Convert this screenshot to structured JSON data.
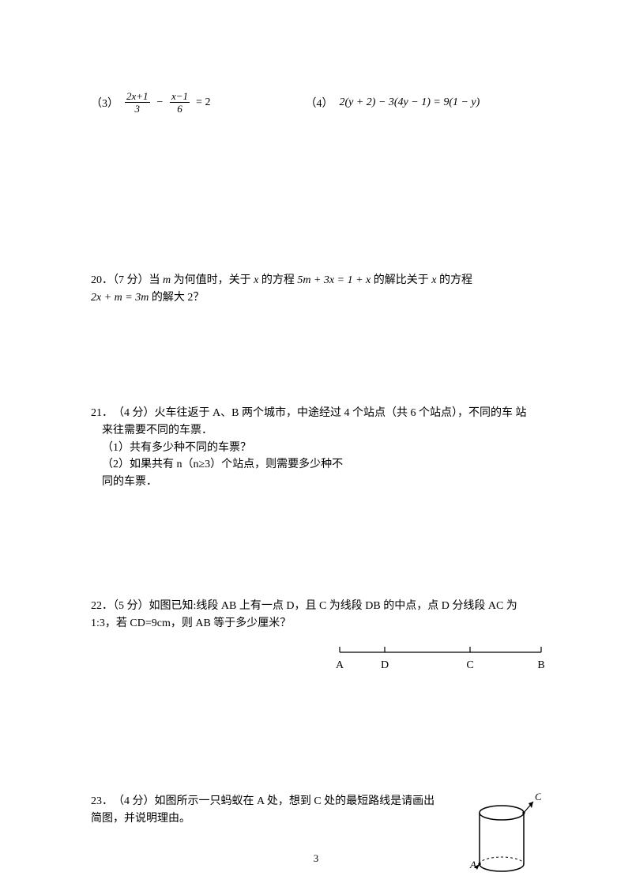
{
  "equations": {
    "eq3": {
      "label": "（3）",
      "num1": "2x+1",
      "den1": "3",
      "minus": "−",
      "num2": "x−1",
      "den2": "6",
      "tail": " = 2"
    },
    "eq4": {
      "label": "（4）",
      "body": "2(y + 2) − 3(4y − 1) = 9(1 − y)"
    }
  },
  "q20": {
    "line1_a": "20．（7 分）当 ",
    "line1_m": "m",
    "line1_b": " 为何值时，关于 ",
    "line1_x1": "x",
    "line1_c": " 的方程 ",
    "line1_eq": "5m + 3x = 1 + x",
    "line1_d": " 的解比关于 ",
    "line1_x2": "x",
    "line1_e": " 的方程",
    "line2_eq": "2x + m = 3m",
    "line2_tail": "  的解大 2？"
  },
  "q21": {
    "line1": "21．　（4 分）火车往返于 A、B 两个城市，中途经过 4 个站点（共 6 个站点），不同的车 站",
    "line2": "来往需要不同的车票．",
    "sub1": "（1）共有多少种不同的车票？",
    "sub2": "（2）如果共有 n（n≥3）个站点，则需要多少种不",
    "sub3": "同的车票．"
  },
  "q22": {
    "line1": "22．（5 分）如图已知:线段 AB 上有一点 D，且 C 为线段 DB 的中点，点 D 分线段 AC 为",
    "line2": "1:3，若 CD=9cm，则 AB 等于多少厘米？",
    "labels": {
      "A": "A",
      "D": "D",
      "C": "C",
      "B": "B"
    },
    "style": {
      "stroke": "#000000",
      "stroke_width": 1.2,
      "font_size": 14,
      "tick_h": 7
    }
  },
  "q23": {
    "line1": "23．　（4 分）如图所示一只蚂蚁在 A 处，想到 C 处的最短路线是请画出",
    "line2": "简图，并说明理由。",
    "labels": {
      "A": "A",
      "C": "C"
    },
    "style": {
      "stroke": "#000000",
      "stroke_width": 1.5,
      "font_size": 13,
      "font_style": "italic"
    }
  },
  "page_number": "3"
}
